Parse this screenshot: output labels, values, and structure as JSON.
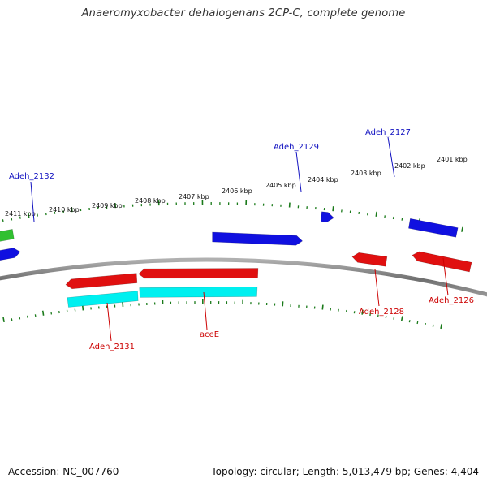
{
  "title": "Anaeromyxobacter dehalogenans 2CP-C, complete genome",
  "footer": {
    "accession": "Accession: NC_007760",
    "stats": "Topology: circular; Length: 5,013,479 bp; Genes: 4,404"
  },
  "colors": {
    "backbone": "#808080",
    "tick": "#1a7a1a",
    "forward_label": "#1010c0",
    "reverse_label": "#cc0000",
    "gene_red": "#e01010",
    "gene_blue": "#1010e0",
    "gene_green": "#30c030",
    "gene_cyan": "#00f0f0",
    "gene_beige": "#f0e0a0"
  },
  "ruler_labels": [
    "2411 kbp",
    "2410 kbp",
    "2409 kbp",
    "2408 kbp",
    "2407 kbp",
    "2406 kbp",
    "2405 kbp",
    "2404 kbp",
    "2403 kbp",
    "2402 kbp",
    "2401 kbp"
  ],
  "forward_gene_labels": [
    "Adeh_2132",
    "Adeh_2129",
    "Adeh_2127"
  ],
  "reverse_gene_labels": [
    "Adeh_2131",
    "aceE",
    "Adeh_2128",
    "Adeh_2126"
  ]
}
